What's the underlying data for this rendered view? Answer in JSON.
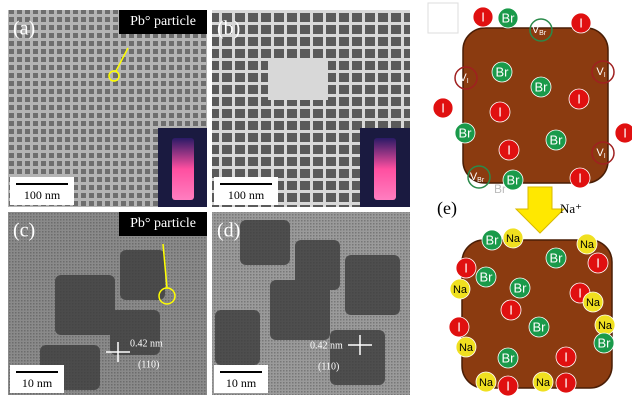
{
  "panels": [
    {
      "label": "(a)",
      "annotation": "Pb° particle",
      "scale_bar": "100 nm"
    },
    {
      "label": "(b)",
      "scale_bar": "100 nm"
    },
    {
      "label": "(c)",
      "annotation": "Pb° particle",
      "spacing": "0.42 nm",
      "plane": "(110)",
      "scale_bar": "10 nm"
    },
    {
      "label": "(d)",
      "spacing": "0.42 nm",
      "plane": "(110)",
      "scale_bar": "10 nm"
    }
  ],
  "schematic": {
    "label": "(e)",
    "reagent": "Na⁺",
    "released_ion": "Br",
    "before": [
      "I",
      "Br",
      {
        "symbol": "V",
        "subscript": "Br"
      },
      "I",
      {
        "symbol": "V",
        "subscript": "I"
      },
      "Br",
      "Br",
      "I",
      {
        "symbol": "V",
        "subscript": "I"
      },
      "I",
      "I",
      "Br",
      "Br",
      "I",
      "I",
      {
        "symbol": "V",
        "subscript": "I"
      },
      {
        "symbol": "V",
        "subscript": "Br"
      },
      "Br",
      "I"
    ],
    "after": [
      "Br",
      "Na",
      "Na",
      "Br",
      "I",
      "I",
      "Na",
      "Br",
      "Br",
      "I",
      "I",
      "Na",
      "I",
      "Br",
      "Na",
      "Na",
      "Br",
      "Br",
      "I",
      "Na",
      "I",
      "Na",
      "I"
    ]
  }
}
